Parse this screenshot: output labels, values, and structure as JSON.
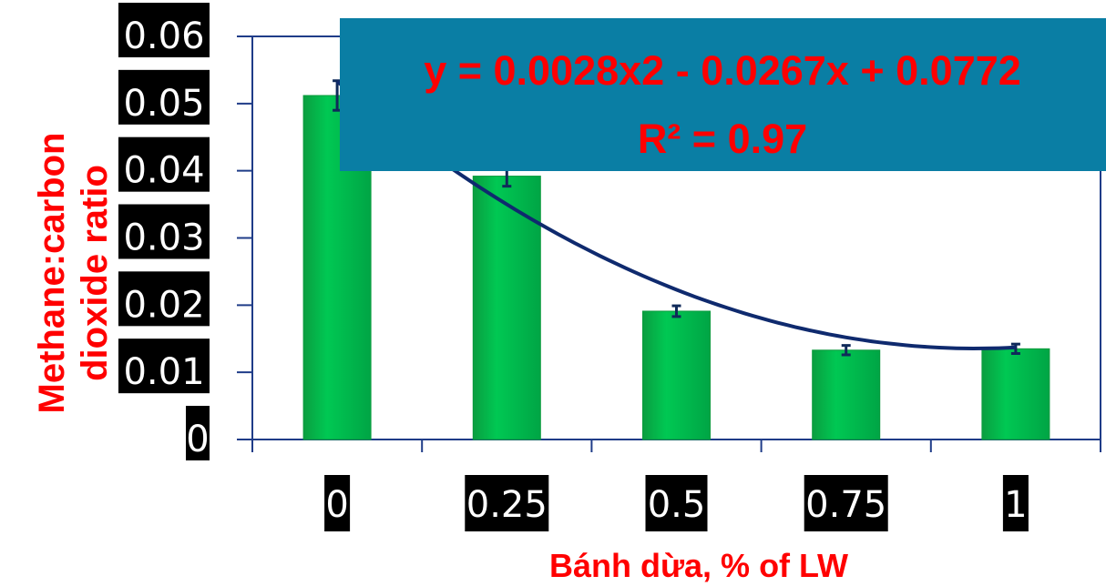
{
  "chart_data": {
    "type": "bar",
    "categories": [
      "0",
      "0.25",
      "0.5",
      "0.75",
      "1"
    ],
    "values": [
      0.0512,
      0.0392,
      0.0191,
      0.0133,
      0.0135
    ],
    "error": [
      0.0022,
      0.0015,
      0.0008,
      0.0007,
      0.0007
    ],
    "xlabel": "Bánh dừa, % of LW",
    "ylabel": "Methane:carbon dioxide ratio",
    "ylabel_lines": [
      "Methane:carbon",
      "dioxide ratio"
    ],
    "ylim": [
      0,
      0.06
    ],
    "yticks": [
      "0",
      "0.01",
      "0.02",
      "0.03",
      "0.04",
      "0.05",
      "0.06"
    ],
    "bar_color": "#00b050",
    "trendline": {
      "type": "polynomial",
      "coefficients": [
        0.0028,
        -0.0267,
        0.0772
      ],
      "equation": "y = 0.0028x2 - 0.0267x + 0.0772",
      "r_squared": "R² = 0.97",
      "color": "#0f2a6e"
    },
    "equation_box_color": "#0a7ea4",
    "grid": false,
    "legend": "none"
  }
}
